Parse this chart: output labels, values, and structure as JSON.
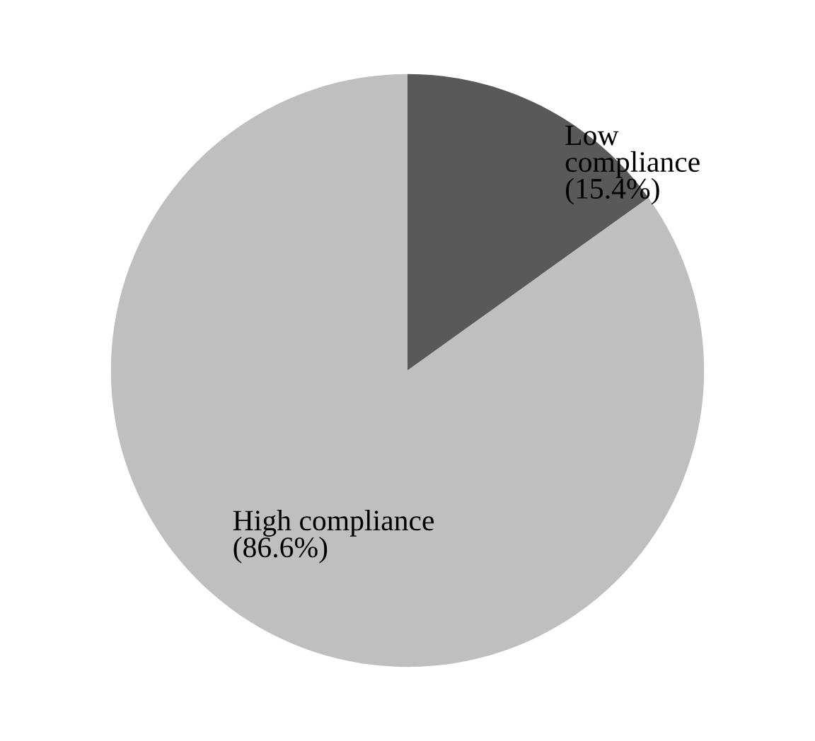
{
  "chart_data": {
    "type": "pie",
    "categories": [
      "Low compliance",
      "High compliance"
    ],
    "values": [
      15.4,
      86.6
    ],
    "value_labels": [
      "(15.4%)",
      "(86.6%)"
    ],
    "colors": [
      "#595959",
      "#bfbfbf"
    ]
  }
}
